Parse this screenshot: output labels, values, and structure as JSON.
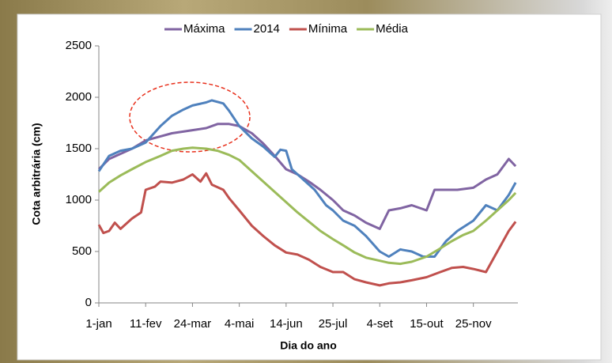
{
  "chart_data": {
    "type": "line",
    "xlabel": "Dia do ano",
    "ylabel": "Cota arbitrária (cm)",
    "xlim": [
      1,
      368
    ],
    "ylim": [
      0,
      2500
    ],
    "yticks": [
      0,
      500,
      1000,
      1500,
      2000,
      2500
    ],
    "xticks": [
      {
        "value": 1,
        "label": "1-jan"
      },
      {
        "value": 42,
        "label": "11-fev"
      },
      {
        "value": 83,
        "label": "24-mar"
      },
      {
        "value": 124,
        "label": "4-mai"
      },
      {
        "value": 165,
        "label": "14-jun"
      },
      {
        "value": 206,
        "label": "25-jul"
      },
      {
        "value": 247,
        "label": "4-set"
      },
      {
        "value": 288,
        "label": "15-out"
      },
      {
        "value": 329,
        "label": "25-nov"
      }
    ],
    "grid": false,
    "legend": "top",
    "series": [
      {
        "name": "Máxima",
        "color": "#8064a2",
        "x": [
          1,
          10,
          20,
          30,
          42,
          55,
          65,
          83,
          95,
          105,
          115,
          124,
          135,
          145,
          155,
          165,
          175,
          185,
          195,
          206,
          215,
          225,
          235,
          247,
          255,
          265,
          275,
          288,
          295,
          305,
          315,
          329,
          340,
          350,
          360,
          366
        ],
        "values": [
          1300,
          1400,
          1450,
          1500,
          1580,
          1620,
          1650,
          1680,
          1700,
          1740,
          1740,
          1720,
          1650,
          1550,
          1430,
          1300,
          1250,
          1180,
          1100,
          1000,
          900,
          850,
          780,
          720,
          900,
          920,
          950,
          900,
          1100,
          1100,
          1100,
          1120,
          1200,
          1250,
          1400,
          1330
        ]
      },
      {
        "name": "2014",
        "color": "#4f81bd",
        "x": [
          1,
          10,
          20,
          30,
          42,
          55,
          65,
          75,
          83,
          95,
          100,
          110,
          115,
          124,
          135,
          145,
          155,
          160,
          165,
          170,
          180,
          190,
          200,
          206,
          215,
          225,
          235,
          247,
          255,
          265,
          275,
          285,
          295,
          305,
          315,
          329,
          340,
          350,
          360,
          366
        ],
        "values": [
          1280,
          1430,
          1480,
          1500,
          1560,
          1720,
          1820,
          1880,
          1920,
          1950,
          1970,
          1940,
          1870,
          1720,
          1600,
          1520,
          1420,
          1490,
          1480,
          1300,
          1200,
          1100,
          950,
          900,
          800,
          750,
          650,
          500,
          450,
          520,
          500,
          450,
          450,
          600,
          700,
          800,
          950,
          900,
          1050,
          1170
        ]
      },
      {
        "name": "Mínima",
        "color": "#c0504d",
        "x": [
          1,
          5,
          10,
          15,
          20,
          30,
          38,
          42,
          50,
          55,
          65,
          75,
          83,
          90,
          95,
          100,
          110,
          115,
          124,
          135,
          145,
          155,
          165,
          175,
          185,
          195,
          206,
          215,
          225,
          235,
          247,
          255,
          265,
          275,
          288,
          300,
          310,
          320,
          329,
          340,
          350,
          360,
          366
        ],
        "values": [
          760,
          680,
          700,
          780,
          720,
          820,
          880,
          1100,
          1130,
          1180,
          1170,
          1200,
          1250,
          1180,
          1260,
          1150,
          1100,
          1020,
          900,
          750,
          650,
          560,
          490,
          470,
          420,
          350,
          300,
          300,
          230,
          200,
          170,
          190,
          200,
          220,
          250,
          300,
          340,
          350,
          330,
          300,
          500,
          700,
          790
        ]
      },
      {
        "name": "Média",
        "color": "#9bbb59",
        "x": [
          1,
          10,
          20,
          30,
          42,
          55,
          65,
          75,
          83,
          95,
          105,
          115,
          124,
          135,
          145,
          155,
          165,
          175,
          185,
          195,
          206,
          215,
          225,
          235,
          247,
          255,
          265,
          275,
          288,
          300,
          310,
          320,
          329,
          340,
          350,
          360,
          366
        ],
        "values": [
          1080,
          1170,
          1240,
          1300,
          1370,
          1430,
          1480,
          1500,
          1510,
          1500,
          1480,
          1440,
          1390,
          1280,
          1180,
          1080,
          980,
          880,
          790,
          700,
          620,
          560,
          490,
          440,
          410,
          390,
          380,
          400,
          450,
          530,
          600,
          660,
          700,
          800,
          900,
          1000,
          1070
        ]
      }
    ]
  }
}
